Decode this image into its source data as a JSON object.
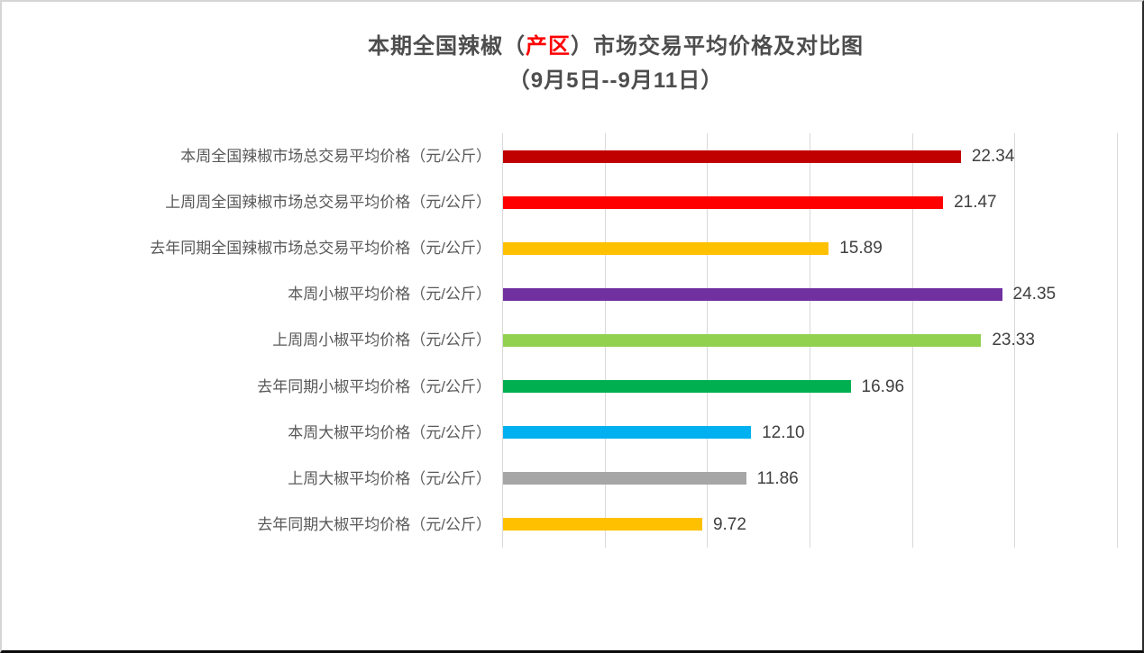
{
  "title": {
    "line1_prefix": "本期全国辣椒（",
    "line1_highlight": "产区",
    "line1_suffix": "）市场交易平均价格及对比图",
    "line2": "（9月5日--9月11日）",
    "text_color": "#4d4d4d",
    "highlight_color": "#ff0000"
  },
  "chart_data": {
    "type": "bar",
    "orientation": "horizontal",
    "title": "本期全国辣椒（产区）市场交易平均价格及对比图（9月5日--9月11日）",
    "categories": [
      "本周全国辣椒市场总交易平均价格（元/公斤）",
      "上周周全国辣椒市场总交易平均价格（元/公斤）",
      "去年同期全国辣椒市场总交易平均价格（元/公斤）",
      "本周小椒平均价格（元/公斤）",
      "上周周小椒平均价格（元/公斤）",
      "去年同期小椒平均价格（元/公斤）",
      "本周大椒平均价格（元/公斤）",
      "上周大椒平均价格（元/公斤）",
      "去年同期大椒平均价格（元/公斤）"
    ],
    "values": [
      22.34,
      21.47,
      15.89,
      24.35,
      23.33,
      16.96,
      12.1,
      11.86,
      9.72
    ],
    "value_labels": [
      "22.34",
      "21.47",
      "15.89",
      "24.35",
      "23.33",
      "16.96",
      "12.10",
      "11.86",
      "9.72"
    ],
    "bar_colors": [
      "#c00000",
      "#ff0000",
      "#ffc000",
      "#7030a0",
      "#92d050",
      "#00b050",
      "#00b0f0",
      "#a6a6a6",
      "#ffc000"
    ],
    "xlabel": "",
    "ylabel": "",
    "xlim": [
      0,
      30
    ],
    "gridline_step": 5,
    "gridline_color": "#d9d9d9",
    "x_axis_tick_labels_visible": false,
    "legend": "none",
    "category_label_color": "#595959",
    "value_label_color": "#404040"
  }
}
